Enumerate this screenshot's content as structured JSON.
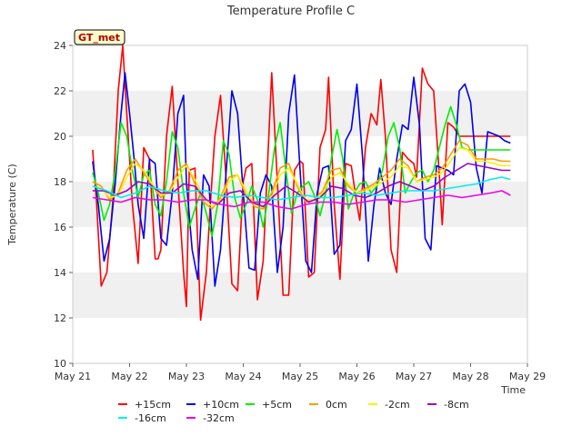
{
  "chart_data": {
    "type": "line",
    "title": "Temperature Profile C",
    "xlabel": "Time",
    "ylabel": "Temperature (C)",
    "badge": "GT_met",
    "ylim": [
      10,
      24
    ],
    "y_ticks": [
      10,
      12,
      14,
      16,
      18,
      20,
      22,
      24
    ],
    "x_ticks": [
      "May 21",
      "May 22",
      "May 23",
      "May 24",
      "May 25",
      "May 26",
      "May 27",
      "May 28",
      "May 29"
    ],
    "x_range_days": [
      0,
      8
    ],
    "grid": "horizontal bands",
    "legend_position": "bottom",
    "series": [
      {
        "name": "+15cm",
        "color": "#ff0000",
        "x": [
          0.35,
          0.42,
          0.5,
          0.6,
          0.7,
          0.8,
          0.88,
          0.95,
          1.0,
          1.05,
          1.15,
          1.25,
          1.35,
          1.45,
          1.5,
          1.55,
          1.65,
          1.75,
          1.85,
          1.95,
          2.0,
          2.05,
          2.15,
          2.25,
          2.35,
          2.42,
          2.5,
          2.6,
          2.7,
          2.8,
          2.9,
          3.0,
          3.05,
          3.15,
          3.25,
          3.35,
          3.45,
          3.5,
          3.6,
          3.7,
          3.8,
          3.9,
          4.0,
          4.05,
          4.15,
          4.25,
          4.35,
          4.45,
          4.5,
          4.6,
          4.7,
          4.8,
          4.9,
          5.0,
          5.05,
          5.15,
          5.25,
          5.35,
          5.42,
          5.5,
          5.6,
          5.7,
          5.8,
          5.9,
          6.0,
          6.05,
          6.15,
          6.25,
          6.35,
          6.45,
          6.5,
          6.6,
          6.7,
          6.8,
          6.9,
          7.0,
          7.05,
          7.15,
          7.25,
          7.35,
          7.4,
          7.5,
          7.6,
          7.7
        ],
        "values": [
          19.4,
          17.0,
          13.4,
          14.0,
          17.0,
          22.0,
          24.0,
          21.0,
          19.0,
          17.0,
          14.4,
          19.5,
          19.0,
          14.6,
          14.6,
          15.0,
          20.0,
          22.2,
          18.0,
          14.0,
          12.5,
          18.5,
          18.6,
          11.9,
          14.0,
          17.0,
          20.0,
          21.8,
          18.0,
          13.5,
          13.2,
          18.0,
          18.6,
          18.8,
          12.8,
          14.5,
          20.0,
          22.8,
          18.0,
          13.0,
          13.0,
          18.5,
          18.9,
          18.8,
          13.8,
          14.0,
          19.5,
          20.3,
          22.6,
          17.0,
          13.7,
          18.8,
          18.7,
          17.0,
          16.3,
          19.5,
          21.0,
          20.5,
          22.5,
          20.0,
          15.0,
          14.0,
          19.3,
          19.0,
          18.8,
          18.2,
          23.0,
          22.3,
          22.0,
          18.3,
          16.1,
          20.6,
          20.4,
          20.0,
          20.0,
          20.0,
          20.0,
          20.0,
          20.0,
          20.0,
          20.0,
          20.0,
          20.0,
          20.0
        ]
      },
      {
        "name": "+10cm",
        "color": "#0000ee",
        "x": [
          0.35,
          0.45,
          0.55,
          0.65,
          0.75,
          0.85,
          0.92,
          1.0,
          1.08,
          1.15,
          1.25,
          1.35,
          1.45,
          1.55,
          1.65,
          1.75,
          1.85,
          1.95,
          2.0,
          2.1,
          2.2,
          2.3,
          2.4,
          2.5,
          2.6,
          2.7,
          2.8,
          2.9,
          3.0,
          3.1,
          3.2,
          3.3,
          3.4,
          3.5,
          3.6,
          3.7,
          3.8,
          3.9,
          4.0,
          4.1,
          4.2,
          4.3,
          4.4,
          4.5,
          4.6,
          4.7,
          4.8,
          4.9,
          5.0,
          5.1,
          5.2,
          5.3,
          5.4,
          5.5,
          5.6,
          5.7,
          5.8,
          5.9,
          6.0,
          6.1,
          6.2,
          6.3,
          6.4,
          6.5,
          6.6,
          6.7,
          6.8,
          6.9,
          7.0,
          7.1,
          7.2,
          7.3,
          7.4,
          7.5,
          7.6,
          7.7
        ],
        "values": [
          18.9,
          17.0,
          14.5,
          15.5,
          18.0,
          21.0,
          22.8,
          21.0,
          19.0,
          17.0,
          15.5,
          19.0,
          18.8,
          15.5,
          15.2,
          17.5,
          21.0,
          21.8,
          18.0,
          15.0,
          13.7,
          18.3,
          17.8,
          13.4,
          15.0,
          18.5,
          22.0,
          21.0,
          17.5,
          14.2,
          14.1,
          17.5,
          18.3,
          17.8,
          14.0,
          16.0,
          21.0,
          22.7,
          18.5,
          14.5,
          14.0,
          17.5,
          18.6,
          18.7,
          14.8,
          15.2,
          19.8,
          20.3,
          22.3,
          19.0,
          14.5,
          17.0,
          18.6,
          17.5,
          17.0,
          19.0,
          20.5,
          20.3,
          22.6,
          20.5,
          15.5,
          15.0,
          18.7,
          18.6,
          18.5,
          18.3,
          22.0,
          22.3,
          21.5,
          18.6,
          17.5,
          20.2,
          20.1,
          20.0,
          19.8,
          19.7
        ]
      },
      {
        "name": "+5cm",
        "color": "#00ee00",
        "x": [
          0.35,
          0.45,
          0.55,
          0.65,
          0.75,
          0.85,
          0.95,
          1.05,
          1.15,
          1.25,
          1.35,
          1.45,
          1.55,
          1.65,
          1.75,
          1.85,
          1.95,
          2.05,
          2.15,
          2.25,
          2.35,
          2.45,
          2.55,
          2.65,
          2.75,
          2.85,
          2.95,
          3.05,
          3.15,
          3.25,
          3.35,
          3.45,
          3.55,
          3.65,
          3.75,
          3.85,
          3.95,
          4.05,
          4.15,
          4.25,
          4.35,
          4.45,
          4.55,
          4.65,
          4.75,
          4.85,
          4.95,
          5.05,
          5.15,
          5.25,
          5.35,
          5.45,
          5.55,
          5.65,
          5.75,
          5.85,
          5.95,
          6.05,
          6.15,
          6.25,
          6.35,
          6.45,
          6.55,
          6.65,
          6.75,
          6.85,
          6.95,
          7.05,
          7.15,
          7.25,
          7.35,
          7.45,
          7.55,
          7.65,
          7.7
        ],
        "values": [
          18.4,
          17.5,
          16.3,
          17.0,
          18.5,
          20.6,
          20.0,
          18.5,
          17.3,
          18.3,
          18.5,
          17.0,
          16.5,
          18.0,
          20.2,
          19.5,
          17.5,
          16.0,
          16.8,
          17.5,
          16.6,
          15.6,
          17.0,
          19.8,
          19.2,
          17.3,
          16.4,
          17.0,
          17.8,
          17.2,
          16.0,
          17.5,
          19.5,
          20.6,
          18.5,
          16.6,
          17.5,
          17.8,
          18.0,
          17.4,
          16.5,
          17.5,
          19.0,
          20.3,
          19.0,
          16.8,
          17.5,
          17.9,
          18.0,
          17.5,
          17.8,
          18.5,
          20.0,
          20.6,
          19.5,
          17.5,
          18.0,
          18.4,
          18.5,
          18.0,
          18.5,
          19.5,
          20.5,
          21.3,
          20.5,
          19.5,
          19.4,
          19.4,
          19.4,
          19.4,
          19.4,
          19.4,
          19.4,
          19.4,
          19.4
        ]
      },
      {
        "name": "0cm",
        "color": "#ff9900",
        "x": [
          0.35,
          0.5,
          0.65,
          0.8,
          0.95,
          1.1,
          1.25,
          1.4,
          1.55,
          1.7,
          1.85,
          2.0,
          2.15,
          2.3,
          2.45,
          2.6,
          2.75,
          2.9,
          3.05,
          3.2,
          3.35,
          3.5,
          3.65,
          3.8,
          3.95,
          4.1,
          4.25,
          4.4,
          4.55,
          4.7,
          4.85,
          5.0,
          5.15,
          5.3,
          5.45,
          5.6,
          5.75,
          5.9,
          6.05,
          6.2,
          6.35,
          6.5,
          6.65,
          6.8,
          6.95,
          7.1,
          7.25,
          7.4,
          7.55,
          7.7
        ],
        "values": [
          18.0,
          17.8,
          17.2,
          17.5,
          18.5,
          19.0,
          18.4,
          17.8,
          17.3,
          17.6,
          18.5,
          18.8,
          17.9,
          17.1,
          16.8,
          17.3,
          18.2,
          18.3,
          17.4,
          16.9,
          16.8,
          17.5,
          18.6,
          18.8,
          17.8,
          17.1,
          17.2,
          17.6,
          18.5,
          18.6,
          17.8,
          17.5,
          17.7,
          17.9,
          18.2,
          18.5,
          19.0,
          18.7,
          18.0,
          18.2,
          18.3,
          18.6,
          19.2,
          19.8,
          19.6,
          19.0,
          19.0,
          19.0,
          18.9,
          18.9
        ]
      },
      {
        "name": "-2cm",
        "color": "#ffee00",
        "x": [
          0.35,
          0.5,
          0.65,
          0.8,
          0.95,
          1.1,
          1.25,
          1.4,
          1.55,
          1.7,
          1.85,
          2.0,
          2.15,
          2.3,
          2.45,
          2.6,
          2.75,
          2.9,
          3.05,
          3.2,
          3.35,
          3.5,
          3.65,
          3.8,
          3.95,
          4.1,
          4.25,
          4.4,
          4.55,
          4.7,
          4.85,
          5.0,
          5.15,
          5.3,
          5.45,
          5.6,
          5.75,
          5.9,
          6.05,
          6.2,
          6.35,
          6.5,
          6.65,
          6.8,
          6.95,
          7.1,
          7.25,
          7.4,
          7.55,
          7.7
        ],
        "values": [
          17.8,
          17.7,
          17.3,
          17.4,
          18.2,
          18.8,
          18.5,
          17.9,
          17.4,
          17.5,
          18.2,
          18.7,
          18.1,
          17.3,
          16.9,
          17.2,
          18.0,
          18.3,
          17.6,
          17.0,
          16.9,
          17.3,
          18.3,
          18.6,
          17.9,
          17.2,
          17.2,
          17.5,
          18.2,
          18.4,
          17.9,
          17.5,
          17.6,
          17.8,
          18.0,
          18.2,
          18.7,
          18.6,
          18.0,
          18.1,
          18.2,
          18.4,
          18.9,
          19.5,
          19.4,
          18.9,
          18.9,
          18.8,
          18.7,
          18.7
        ]
      },
      {
        "name": "-8cm",
        "color": "#9900cc",
        "x": [
          0.35,
          0.55,
          0.75,
          0.95,
          1.15,
          1.35,
          1.55,
          1.75,
          1.95,
          2.15,
          2.35,
          2.55,
          2.75,
          2.95,
          3.15,
          3.35,
          3.55,
          3.75,
          3.95,
          4.15,
          4.35,
          4.55,
          4.75,
          4.95,
          5.15,
          5.35,
          5.55,
          5.75,
          5.95,
          6.15,
          6.35,
          6.55,
          6.75,
          6.95,
          7.15,
          7.35,
          7.55,
          7.7
        ],
        "values": [
          17.6,
          17.6,
          17.4,
          17.6,
          18.0,
          17.9,
          17.5,
          17.5,
          17.9,
          17.8,
          17.2,
          17.0,
          17.5,
          17.6,
          17.1,
          16.9,
          17.4,
          17.8,
          17.5,
          17.1,
          17.3,
          17.8,
          17.7,
          17.4,
          17.3,
          17.5,
          17.8,
          18.0,
          17.8,
          17.6,
          17.8,
          18.2,
          18.5,
          18.8,
          18.7,
          18.6,
          18.5,
          18.5
        ]
      },
      {
        "name": "-16cm",
        "color": "#00eeee",
        "x": [
          0.35,
          0.6,
          0.85,
          1.1,
          1.35,
          1.6,
          1.85,
          2.1,
          2.35,
          2.6,
          2.85,
          3.1,
          3.35,
          3.6,
          3.85,
          4.1,
          4.35,
          4.6,
          4.85,
          5.1,
          5.35,
          5.6,
          5.85,
          6.1,
          6.35,
          6.6,
          6.85,
          7.1,
          7.35,
          7.55,
          7.7
        ],
        "values": [
          17.8,
          17.6,
          17.3,
          17.5,
          17.8,
          17.6,
          17.5,
          17.6,
          17.6,
          17.4,
          17.3,
          17.4,
          17.3,
          17.2,
          17.3,
          17.4,
          17.3,
          17.3,
          17.4,
          17.5,
          17.4,
          17.5,
          17.6,
          17.6,
          17.6,
          17.7,
          17.8,
          17.9,
          18.1,
          18.2,
          18.1
        ]
      },
      {
        "name": "-32cm",
        "color": "#ee00ee",
        "x": [
          0.35,
          0.6,
          0.85,
          1.1,
          1.35,
          1.6,
          1.85,
          2.1,
          2.35,
          2.6,
          2.85,
          3.1,
          3.35,
          3.6,
          3.85,
          4.1,
          4.35,
          4.6,
          4.85,
          5.1,
          5.35,
          5.6,
          5.85,
          6.1,
          6.35,
          6.6,
          6.85,
          7.1,
          7.35,
          7.55,
          7.7
        ],
        "values": [
          17.3,
          17.2,
          17.1,
          17.3,
          17.2,
          17.2,
          17.1,
          17.2,
          17.2,
          17.0,
          16.9,
          17.1,
          17.1,
          16.9,
          16.8,
          17.0,
          17.1,
          17.1,
          17.0,
          17.1,
          17.2,
          17.2,
          17.1,
          17.2,
          17.3,
          17.4,
          17.3,
          17.4,
          17.5,
          17.6,
          17.4
        ]
      }
    ]
  }
}
